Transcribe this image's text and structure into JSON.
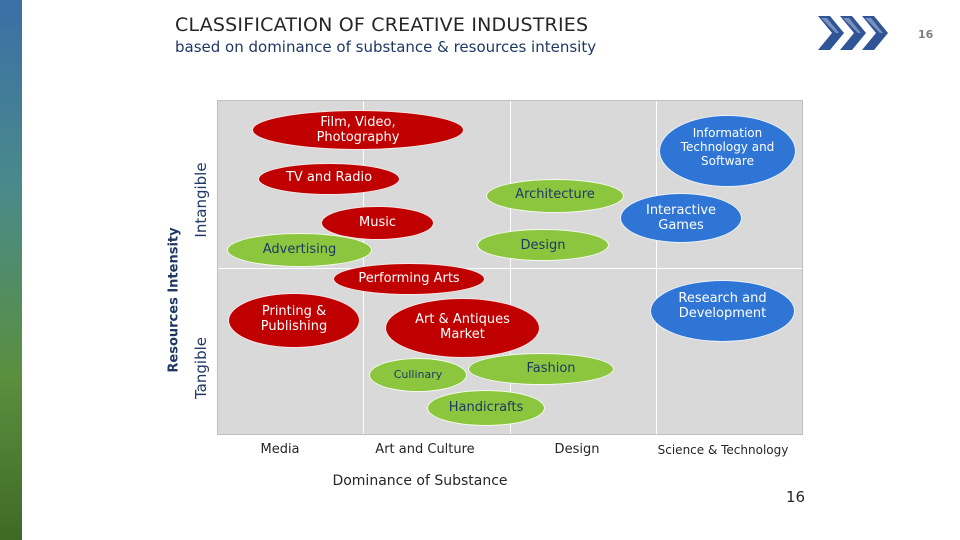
{
  "slide": {
    "title": "CLASSIFICATION OF CREATIVE INDUSTRIES",
    "subtitle": "based on dominance of substance & resources intensity",
    "page_number_top": "16",
    "page_number_bottom": "16",
    "icon": "triple-chevron-right-icon"
  },
  "axes": {
    "y_title": "Resources Intensity",
    "y_top": "Intangible",
    "y_bottom": "Tangible",
    "x_title": "Dominance of Substance",
    "x_categories": [
      "Media",
      "Art and Culture",
      "Design",
      "Science & Technology"
    ]
  },
  "bubbles": [
    {
      "label": "Film, Video,\nPhotography",
      "color": "red"
    },
    {
      "label": "TV and Radio",
      "color": "red"
    },
    {
      "label": "Music",
      "color": "red"
    },
    {
      "label": "Advertising",
      "color": "green"
    },
    {
      "label": "Architecture",
      "color": "green"
    },
    {
      "label": "Design",
      "color": "green"
    },
    {
      "label": "Performing Arts",
      "color": "red"
    },
    {
      "label": "Printing &\nPublishing",
      "color": "red"
    },
    {
      "label": "Art & Antiques\nMarket",
      "color": "red"
    },
    {
      "label": "Cullinary",
      "color": "green"
    },
    {
      "label": "Fashion",
      "color": "green"
    },
    {
      "label": "Handicrafts",
      "color": "green"
    },
    {
      "label": "Information\nTechnology and\nSoftware",
      "color": "blue"
    },
    {
      "label": "Interactive\nGames",
      "color": "blue"
    },
    {
      "label": "Research and\nDevelopment",
      "color": "blue"
    }
  ],
  "colors": {
    "red": "#c00000",
    "green": "#8cc63f",
    "blue": "#2e75d6"
  }
}
